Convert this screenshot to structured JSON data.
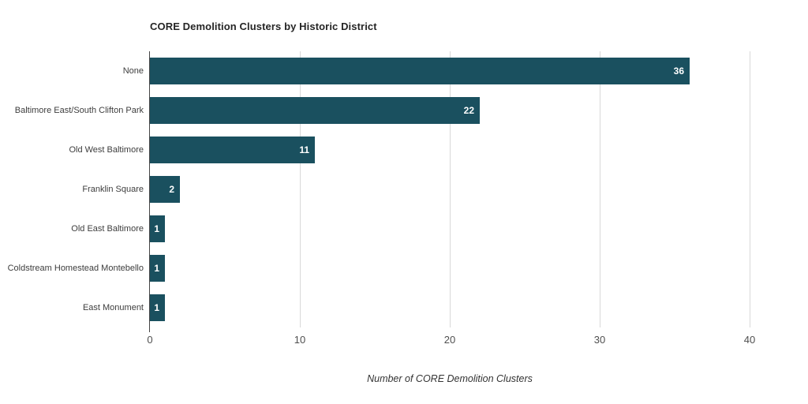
{
  "chart_data": {
    "type": "bar",
    "orientation": "horizontal",
    "title": "CORE Demolition Clusters by Historic District",
    "categories": [
      "None",
      "Baltimore East/South Clifton Park",
      "Old West Baltimore",
      "Franklin Square",
      "Old East Baltimore",
      "Coldstream Homestead Montebello",
      "East Monument"
    ],
    "values": [
      36,
      22,
      11,
      2,
      1,
      1,
      1
    ],
    "xlabel": "Number of CORE Demolition Clusters",
    "ylabel": "",
    "xlim": [
      0,
      40
    ],
    "xticks": [
      0,
      10,
      20,
      30,
      40
    ],
    "grid": "vertical-light-gray",
    "legend": "none",
    "bar_color": "#1a505f",
    "value_label_color": "#ffffff",
    "value_labels_inside_bar_right": true
  }
}
